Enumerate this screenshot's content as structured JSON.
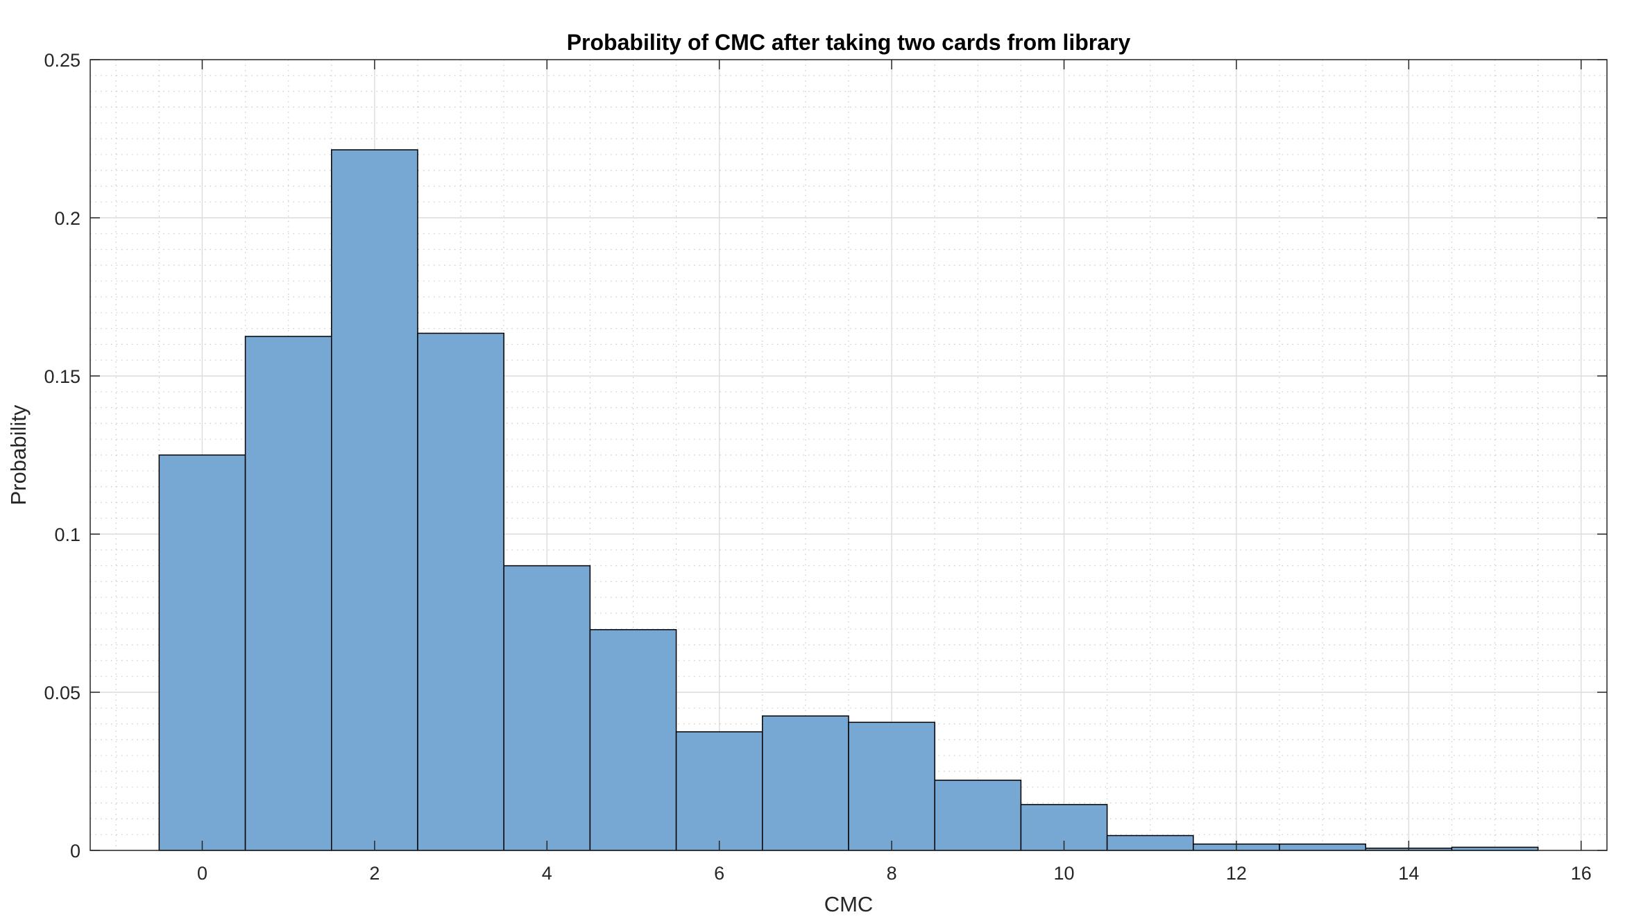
{
  "chart_data": {
    "type": "bar",
    "title": "Probability of CMC after taking two cards from library",
    "xlabel": "CMC",
    "ylabel": "Probability",
    "x": [
      0,
      1,
      2,
      3,
      4,
      5,
      6,
      7,
      8,
      9,
      10,
      11,
      12,
      13,
      14,
      15
    ],
    "values": [
      0.125,
      0.1625,
      0.2215,
      0.1635,
      0.09,
      0.0698,
      0.0375,
      0.0425,
      0.0405,
      0.0222,
      0.0145,
      0.0047,
      0.002,
      0.002,
      0.0007,
      0.001
    ],
    "bin_width": 1,
    "xlim": [
      -1.3,
      16.3
    ],
    "ylim": [
      0,
      0.25
    ],
    "xticks": [
      0,
      2,
      4,
      6,
      8,
      10,
      12,
      14,
      16
    ],
    "yticks": [
      0,
      0.05,
      0.1,
      0.15,
      0.2,
      0.25
    ],
    "ytick_labels": [
      "0",
      "0.05",
      "0.1",
      "0.15",
      "0.2",
      "0.25"
    ],
    "grid": true,
    "minor_grid": true,
    "bar_color": "#77a7d3",
    "bar_edge_color": "#000000"
  }
}
